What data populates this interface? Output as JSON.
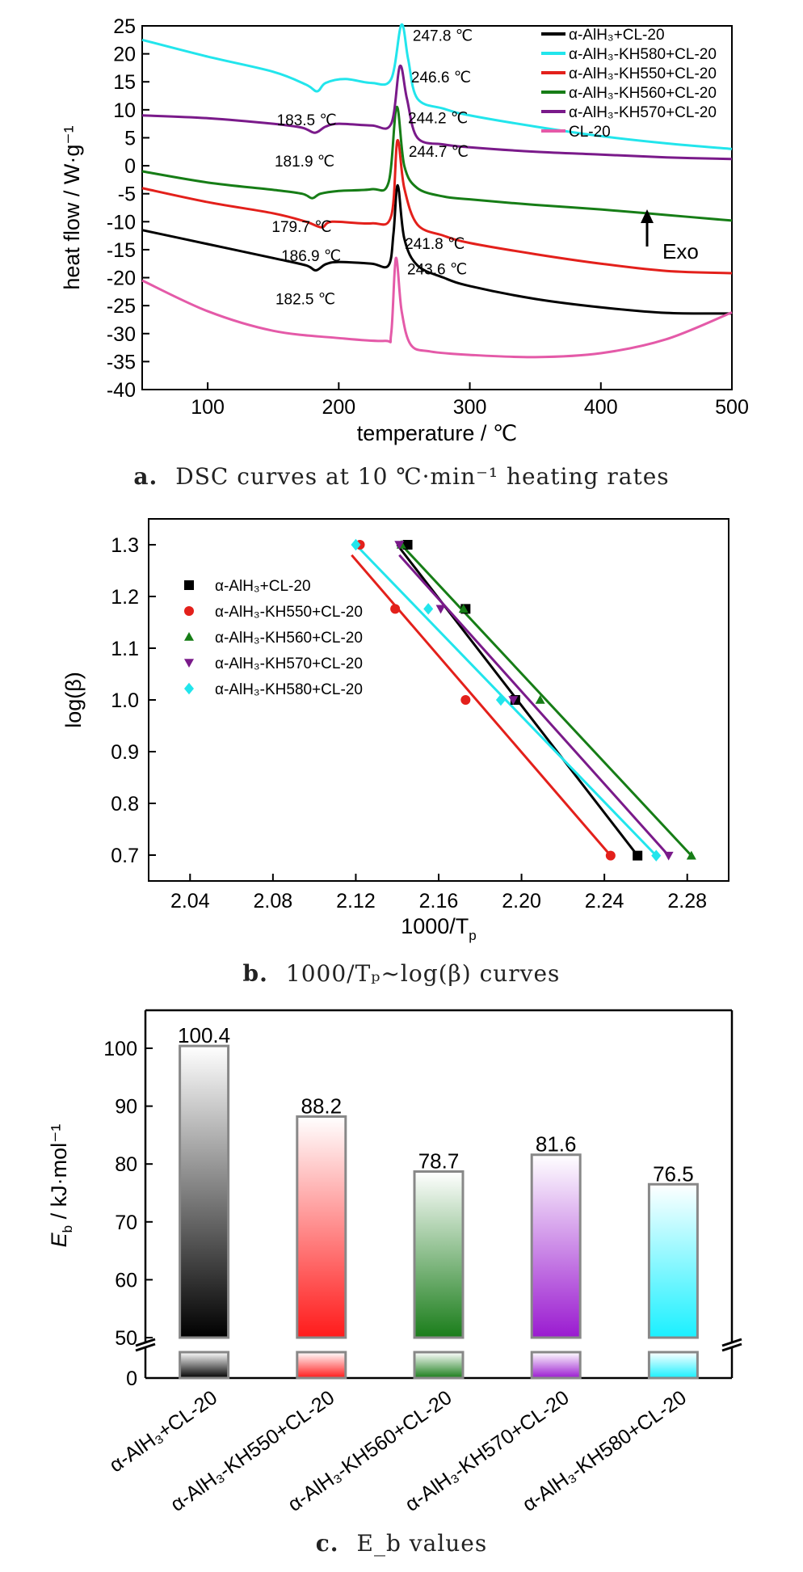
{
  "colors": {
    "aCL20": "#000000",
    "KH550": "#e3201b",
    "KH560": "#167d16",
    "KH570": "#7a1a8a",
    "KH580": "#22e5ec",
    "CL20": "#e45aa8"
  },
  "captions": {
    "a": {
      "letter": "a.",
      "text": "DSC curves at 10 ℃·min⁻¹ heating rates"
    },
    "b": {
      "letter": "b.",
      "text": "1000/Tₚ~log(β) curves"
    },
    "c": {
      "letter": "c.",
      "text": "E_b values"
    }
  },
  "chart_data": [
    {
      "type": "line",
      "xlabel": "temperature / ℃",
      "ylabel": "heat flow / W·g⁻¹",
      "xlim": [
        50,
        500
      ],
      "ylim": [
        -40,
        25
      ],
      "xticks": [
        100,
        200,
        300,
        400,
        500
      ],
      "yticks": [
        25,
        20,
        15,
        10,
        5,
        0,
        -5,
        -10,
        -15,
        -20,
        -25,
        -30,
        -35,
        -40
      ],
      "legend_position": "top-right",
      "exo_label": "Exo",
      "series": [
        {
          "name": "α-AlH₃+CL-20",
          "color": "#000000",
          "points": [
            [
              50,
              -11.5
            ],
            [
              100,
              -14
            ],
            [
              150,
              -16.5
            ],
            [
              175,
              -17.8
            ],
            [
              182.5,
              -18.7
            ],
            [
              190,
              -17.6
            ],
            [
              200,
              -17.2
            ],
            [
              225,
              -17.5
            ],
            [
              238,
              -17.8
            ],
            [
              241.8,
              -12
            ],
            [
              245,
              -3.5
            ],
            [
              250,
              -13
            ],
            [
              260,
              -17.8
            ],
            [
              280,
              -20
            ],
            [
              300,
              -21.5
            ],
            [
              350,
              -23.8
            ],
            [
              400,
              -25.3
            ],
            [
              450,
              -26.3
            ],
            [
              500,
              -26.4
            ]
          ],
          "annotations": [
            {
              "label": "182.5 ℃",
              "x": 182.5,
              "y": -18.7
            },
            {
              "label": "241.8 ℃",
              "x": 241.8,
              "y": -12
            }
          ]
        },
        {
          "name": "α-AlH₃-KH580+CL-20",
          "color": "#22e5ec",
          "points": [
            [
              50,
              22.5
            ],
            [
              100,
              19.5
            ],
            [
              150,
              16.8
            ],
            [
              175,
              14.5
            ],
            [
              183.5,
              13.3
            ],
            [
              190,
              14.8
            ],
            [
              205,
              15.5
            ],
            [
              225,
              14.8
            ],
            [
              240,
              15.5
            ],
            [
              247.8,
              25.2
            ],
            [
              253,
              19
            ],
            [
              260,
              12
            ],
            [
              280,
              10.2
            ],
            [
              300,
              9
            ],
            [
              350,
              7
            ],
            [
              400,
              5.3
            ],
            [
              450,
              4
            ],
            [
              500,
              3
            ]
          ],
          "annotations": [
            {
              "label": "183.5 ℃",
              "x": 183.5,
              "y": 13.3
            },
            {
              "label": "247.8 ℃",
              "x": 247.8,
              "y": 25.2
            }
          ]
        },
        {
          "name": "α-AlH₃-KH550+CL-20",
          "color": "#e3201b",
          "points": [
            [
              50,
              -4
            ],
            [
              100,
              -6.5
            ],
            [
              150,
              -8.5
            ],
            [
              175,
              -10
            ],
            [
              186.9,
              -11
            ],
            [
              195,
              -10
            ],
            [
              225,
              -10.3
            ],
            [
              240,
              -9
            ],
            [
              244.7,
              4.5
            ],
            [
              250,
              -4
            ],
            [
              260,
              -10.5
            ],
            [
              280,
              -12.5
            ],
            [
              300,
              -13.8
            ],
            [
              350,
              -15.8
            ],
            [
              400,
              -17.5
            ],
            [
              450,
              -18.8
            ],
            [
              500,
              -19.2
            ]
          ],
          "annotations": [
            {
              "label": "186.9 ℃",
              "x": 186.9,
              "y": -11
            },
            {
              "label": "244.7 ℃",
              "x": 244.7,
              "y": 4.5
            }
          ]
        },
        {
          "name": "α-AlH₃-KH560+CL-20",
          "color": "#167d16",
          "points": [
            [
              50,
              -1
            ],
            [
              100,
              -3
            ],
            [
              150,
              -4.3
            ],
            [
              172,
              -5
            ],
            [
              179.7,
              -5.8
            ],
            [
              186,
              -5
            ],
            [
              200,
              -4.5
            ],
            [
              225,
              -4.2
            ],
            [
              238,
              -3
            ],
            [
              244.2,
              10.5
            ],
            [
              250,
              0
            ],
            [
              260,
              -4
            ],
            [
              280,
              -5.5
            ],
            [
              300,
              -6
            ],
            [
              350,
              -7
            ],
            [
              400,
              -7.8
            ],
            [
              450,
              -8.8
            ],
            [
              500,
              -9.8
            ]
          ],
          "annotations": [
            {
              "label": "179.7 ℃",
              "x": 179.7,
              "y": -5.8
            },
            {
              "label": "244.2 ℃",
              "x": 244.2,
              "y": 10.5
            }
          ]
        },
        {
          "name": "α-AlH₃-KH570+CL-20",
          "color": "#7a1a8a",
          "points": [
            [
              50,
              9
            ],
            [
              100,
              8.5
            ],
            [
              150,
              7.5
            ],
            [
              172,
              6.8
            ],
            [
              181.9,
              5.9
            ],
            [
              190,
              7
            ],
            [
              200,
              7.5
            ],
            [
              225,
              7.2
            ],
            [
              240,
              7.5
            ],
            [
              246.6,
              17.8
            ],
            [
              252,
              12
            ],
            [
              260,
              5
            ],
            [
              280,
              3.8
            ],
            [
              300,
              3.3
            ],
            [
              350,
              2.5
            ],
            [
              400,
              2
            ],
            [
              450,
              1.5
            ],
            [
              500,
              1.2
            ]
          ],
          "annotations": [
            {
              "label": "181.9 ℃",
              "x": 181.9,
              "y": 5.9
            },
            {
              "label": "246.6 ℃",
              "x": 246.6,
              "y": 17.8
            }
          ]
        },
        {
          "name": "CL-20",
          "color": "#e45aa8",
          "points": [
            [
              50,
              -20.5
            ],
            [
              100,
              -26
            ],
            [
              150,
              -29.5
            ],
            [
              200,
              -30.8
            ],
            [
              235,
              -31.3
            ],
            [
              240,
              -30
            ],
            [
              243.6,
              -16.5
            ],
            [
              248,
              -26
            ],
            [
              255,
              -32
            ],
            [
              270,
              -33.2
            ],
            [
              300,
              -33.8
            ],
            [
              350,
              -34.2
            ],
            [
              400,
              -33.5
            ],
            [
              450,
              -31
            ],
            [
              500,
              -26.2
            ]
          ],
          "annotations": [
            {
              "label": "243.6 ℃",
              "x": 243.6,
              "y": -16.5
            }
          ]
        }
      ]
    },
    {
      "type": "scatter",
      "xlabel": "1000/T",
      "xlabel_sub": "p",
      "ylabel": "log(β)",
      "xlim": [
        2.02,
        2.3
      ],
      "ylim": [
        0.65,
        1.35
      ],
      "xticks": [
        "2.04",
        "2.08",
        "2.12",
        "2.16",
        "2.20",
        "2.24",
        "2.28"
      ],
      "yticks": [
        "1.3",
        "1.2",
        "1.1",
        "1.0",
        "0.9",
        "0.8",
        "0.7"
      ],
      "legend_position": "left",
      "series": [
        {
          "name": "α-AlH₃+CL-20",
          "color": "#000000",
          "marker": "square",
          "points": [
            [
              2.145,
              1.3
            ],
            [
              2.173,
              1.176
            ],
            [
              2.197,
              1.0
            ],
            [
              2.256,
              0.699
            ]
          ],
          "fit": [
            [
              2.14,
              1.3
            ],
            [
              2.256,
              0.699
            ]
          ]
        },
        {
          "name": "α-AlH₃-KH550+CL-20",
          "color": "#e3201b",
          "marker": "circle",
          "points": [
            [
              2.122,
              1.3
            ],
            [
              2.139,
              1.176
            ],
            [
              2.173,
              1.0
            ],
            [
              2.243,
              0.699
            ]
          ],
          "fit": [
            [
              2.118,
              1.28
            ],
            [
              2.243,
              0.699
            ]
          ]
        },
        {
          "name": "α-AlH₃-KH560+CL-20",
          "color": "#167d16",
          "marker": "triangle-up",
          "points": [
            [
              2.142,
              1.3
            ],
            [
              2.172,
              1.176
            ],
            [
              2.209,
              1.0
            ],
            [
              2.282,
              0.699
            ]
          ],
          "fit": [
            [
              2.142,
              1.3
            ],
            [
              2.282,
              0.699
            ]
          ]
        },
        {
          "name": "α-AlH₃-KH570+CL-20",
          "color": "#7a1a8a",
          "marker": "triangle-down",
          "points": [
            [
              2.141,
              1.3
            ],
            [
              2.161,
              1.176
            ],
            [
              2.196,
              1.0
            ],
            [
              2.271,
              0.699
            ]
          ],
          "fit": [
            [
              2.141,
              1.28
            ],
            [
              2.271,
              0.699
            ]
          ]
        },
        {
          "name": "α-AlH₃-KH580+CL-20",
          "color": "#22e5ec",
          "marker": "diamond",
          "points": [
            [
              2.12,
              1.3
            ],
            [
              2.155,
              1.176
            ],
            [
              2.19,
              1.0
            ],
            [
              2.265,
              0.699
            ]
          ],
          "fit": [
            [
              2.12,
              1.3
            ],
            [
              2.265,
              0.699
            ]
          ]
        }
      ]
    },
    {
      "type": "bar",
      "ylabel": "E",
      "ylabel_sub": "b",
      "ylabel_unit": " / kJ·mol⁻¹",
      "ylim": [
        0,
        105
      ],
      "yticks": [
        "100",
        "90",
        "80",
        "70",
        "60",
        "50",
        "0"
      ],
      "categories": [
        "α-AlH₃+CL-20",
        "α-AlH₃-KH550+CL-20",
        "α-AlH₃-KH560+CL-20",
        "α-AlH₃-KH570+CL-20",
        "α-AlH₃-KH580+CL-20"
      ],
      "values": [
        100.4,
        88.2,
        78.7,
        81.6,
        76.5
      ],
      "value_labels": [
        "100.4",
        "88.2",
        "78.7",
        "81.6",
        "76.5"
      ],
      "colors": [
        "#000000",
        "#ff1a1a",
        "#1a7d1a",
        "#9a1ad0",
        "#1af0ff"
      ],
      "axis_break": [
        0,
        50
      ]
    }
  ]
}
